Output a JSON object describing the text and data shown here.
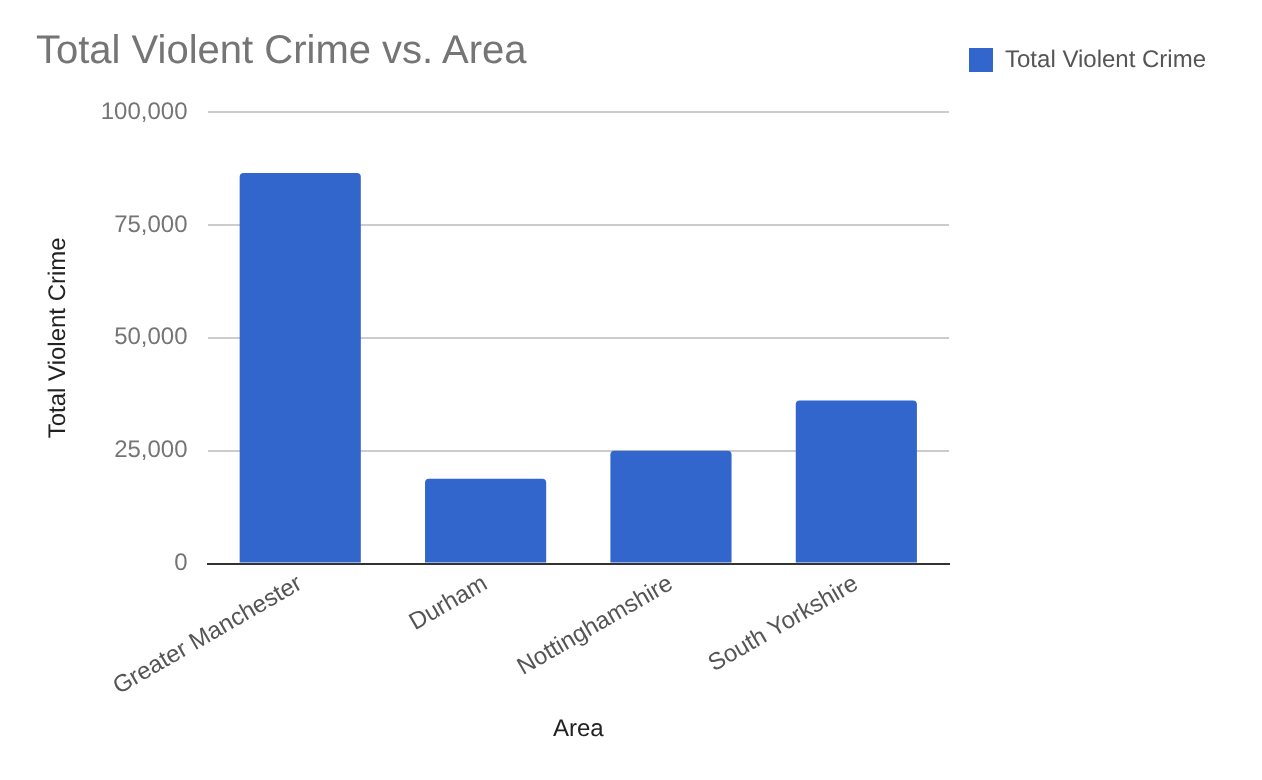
{
  "chart_data": {
    "type": "bar",
    "title": "Total Violent Crime vs. Area",
    "xlabel": "Area",
    "ylabel": "Total Violent Crime",
    "categories": [
      "Greater Manchester",
      "Durham",
      "Nottinghamshire",
      "South Yorkshire"
    ],
    "series": [
      {
        "name": "Total Violent Crime",
        "color": "#3366cc",
        "values": [
          86500,
          18800,
          25000,
          36100
        ]
      }
    ],
    "ylim": [
      0,
      100000
    ],
    "yticks": [
      {
        "value": 0,
        "label": "0"
      },
      {
        "value": 25000,
        "label": "25,000"
      },
      {
        "value": 50000,
        "label": "50,000"
      },
      {
        "value": 75000,
        "label": "75,000"
      },
      {
        "value": 100000,
        "label": "100,000"
      }
    ],
    "grid": "y",
    "legend": "right"
  }
}
